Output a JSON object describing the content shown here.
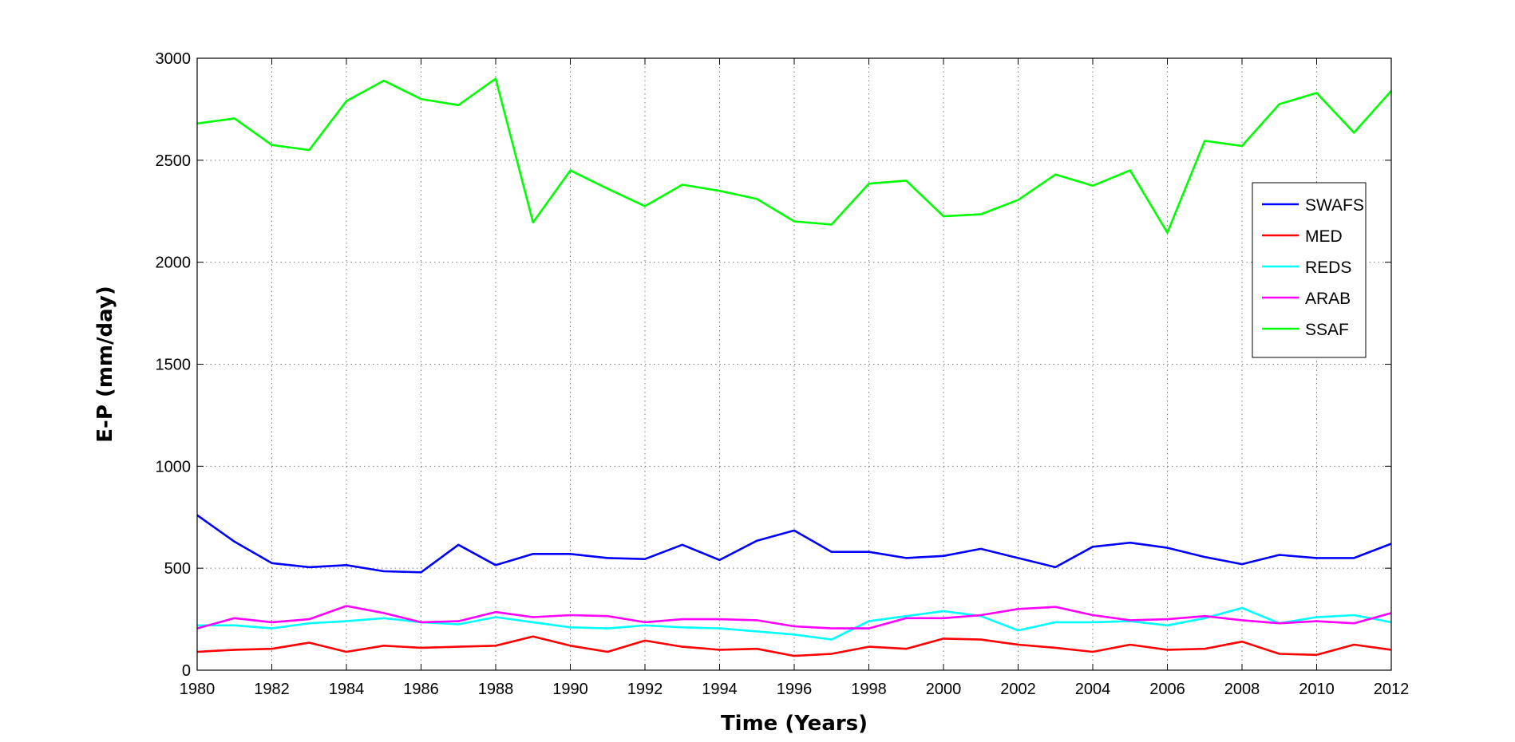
{
  "chart_data": {
    "type": "line",
    "title": "",
    "xlabel": "Time (Years)",
    "ylabel": "E-P (mm/day)",
    "xlim": [
      1980,
      2012
    ],
    "ylim": [
      0,
      3000
    ],
    "xticks": [
      1980,
      1982,
      1984,
      1986,
      1988,
      1990,
      1992,
      1994,
      1996,
      1998,
      2000,
      2002,
      2004,
      2006,
      2008,
      2010,
      2012
    ],
    "yticks": [
      0,
      500,
      1000,
      1500,
      2000,
      2500,
      3000
    ],
    "grid": true,
    "legend_position": "right",
    "x": [
      1980,
      1981,
      1982,
      1983,
      1984,
      1985,
      1986,
      1987,
      1988,
      1989,
      1990,
      1991,
      1992,
      1993,
      1994,
      1995,
      1996,
      1997,
      1998,
      1999,
      2000,
      2001,
      2002,
      2003,
      2004,
      2005,
      2006,
      2007,
      2008,
      2009,
      2010,
      2011,
      2012
    ],
    "series": [
      {
        "name": "SWAFS",
        "color": "#0000ff",
        "values": [
          760,
          630,
          525,
          505,
          515,
          485,
          480,
          615,
          515,
          570,
          570,
          550,
          545,
          615,
          540,
          635,
          685,
          580,
          580,
          550,
          560,
          595,
          550,
          505,
          605,
          625,
          600,
          555,
          520,
          565,
          550,
          550,
          620
        ]
      },
      {
        "name": "MED",
        "color": "#ff0000",
        "values": [
          90,
          100,
          105,
          135,
          90,
          120,
          110,
          115,
          120,
          165,
          120,
          90,
          145,
          115,
          100,
          105,
          70,
          80,
          115,
          105,
          155,
          150,
          125,
          110,
          90,
          125,
          100,
          105,
          140,
          80,
          75,
          125,
          100
        ]
      },
      {
        "name": "REDS",
        "color": "#00ffff",
        "values": [
          220,
          220,
          205,
          230,
          240,
          255,
          235,
          225,
          260,
          235,
          210,
          205,
          220,
          210,
          205,
          190,
          175,
          150,
          240,
          265,
          290,
          265,
          195,
          235,
          235,
          240,
          220,
          255,
          305,
          230,
          260,
          270,
          235
        ]
      },
      {
        "name": "ARAB",
        "color": "#ff00ff",
        "values": [
          205,
          255,
          235,
          250,
          315,
          280,
          235,
          240,
          285,
          260,
          270,
          265,
          235,
          250,
          250,
          245,
          215,
          205,
          205,
          255,
          255,
          270,
          300,
          310,
          270,
          245,
          250,
          265,
          245,
          230,
          240,
          230,
          280
        ]
      },
      {
        "name": "SSAF",
        "color": "#00ff00",
        "values": [
          2680,
          2705,
          2575,
          2550,
          2790,
          2890,
          2800,
          2770,
          2900,
          2195,
          2450,
          2360,
          2275,
          2380,
          2350,
          2310,
          2200,
          2185,
          2385,
          2400,
          2225,
          2235,
          2305,
          2430,
          2375,
          2450,
          2145,
          2595,
          2570,
          2775,
          2830,
          2635,
          2840
        ]
      }
    ]
  }
}
